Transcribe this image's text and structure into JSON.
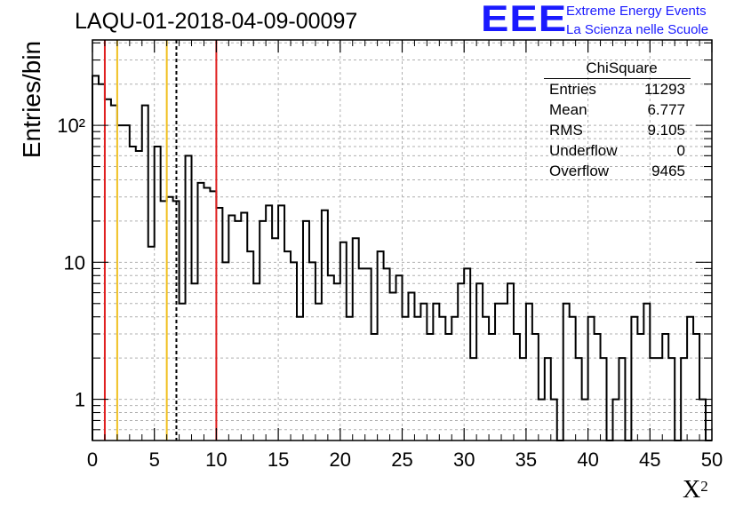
{
  "title": "LAQU-01-2018-04-09-00097",
  "logo": {
    "letters": "EEE",
    "line1": "Extreme Energy Events",
    "line2": "La Scienza nelle Scuole"
  },
  "stats": {
    "name": "ChiSquare",
    "rows": [
      {
        "label": "Entries",
        "value": "11293"
      },
      {
        "label": "Mean",
        "value": "6.777"
      },
      {
        "label": "RMS",
        "value": "9.105"
      },
      {
        "label": "Underflow",
        "value": "0"
      },
      {
        "label": "Overflow",
        "value": "9465"
      }
    ]
  },
  "chart_data": {
    "type": "histogram",
    "title": "LAQU-01-2018-04-09-00097",
    "xlabel": "X²",
    "ylabel": "Entries/bin",
    "xlim": [
      0,
      50
    ],
    "ylim": [
      0.5,
      420
    ],
    "yscale": "log",
    "grid": true,
    "bin_width": 0.5,
    "x_ticks": [
      "0",
      "5",
      "10",
      "15",
      "20",
      "25",
      "30",
      "35",
      "40",
      "45",
      "50"
    ],
    "y_ticks": [
      {
        "value": 1,
        "label": "1"
      },
      {
        "value": 10,
        "label": "10"
      },
      {
        "value": 100,
        "label": "10²"
      }
    ],
    "bin_counts": [
      230,
      200,
      155,
      140,
      100,
      100,
      70,
      65,
      140,
      13,
      70,
      28,
      30,
      28,
      5,
      60,
      7,
      38,
      35,
      33,
      25,
      10,
      22,
      20,
      23,
      12,
      7,
      20,
      26,
      15,
      26,
      12,
      10,
      4,
      20,
      10,
      5,
      24,
      8,
      7,
      14,
      4,
      15,
      9,
      9,
      3,
      12,
      9,
      6,
      8,
      4,
      6,
      4,
      5,
      3,
      5,
      4,
      3,
      4,
      7,
      9,
      2,
      7,
      4,
      3,
      5,
      5,
      7,
      3,
      2,
      5,
      3,
      1,
      2,
      1,
      0.5,
      5,
      4,
      2,
      1,
      4,
      3,
      2,
      0.5,
      1,
      2,
      0.5,
      4,
      3,
      5,
      2,
      2,
      3,
      2,
      0,
      2,
      4,
      3,
      1,
      0.5
    ],
    "vertical_lines": [
      {
        "x": 1,
        "color": "#e02020"
      },
      {
        "x": 2,
        "color": "#f0c020"
      },
      {
        "x": 6,
        "color": "#f0c020"
      },
      {
        "x": 6.777,
        "color": "#000000",
        "style": "dashed"
      },
      {
        "x": 10,
        "color": "#e02020"
      }
    ]
  }
}
